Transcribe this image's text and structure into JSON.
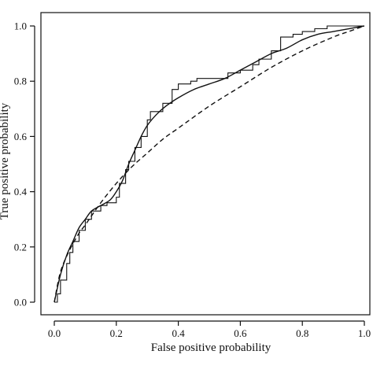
{
  "chart_data": {
    "type": "line",
    "title": "",
    "xlabel": "False positive probability",
    "ylabel": "True positive probability",
    "xlim": [
      0,
      1
    ],
    "ylim": [
      0,
      1
    ],
    "x_ticks": [
      "0.0",
      "0.2",
      "0.4",
      "0.6",
      "0.8",
      "1.0"
    ],
    "y_ticks": [
      "0.0",
      "0.2",
      "0.4",
      "0.6",
      "0.8",
      "1.0"
    ],
    "grid": false,
    "legend": "none",
    "series": [
      {
        "style": "step",
        "line": "solid",
        "x": [
          0.0,
          0.01,
          0.01,
          0.02,
          0.02,
          0.04,
          0.04,
          0.05,
          0.05,
          0.06,
          0.06,
          0.08,
          0.08,
          0.1,
          0.1,
          0.12,
          0.12,
          0.15,
          0.15,
          0.17,
          0.17,
          0.2,
          0.2,
          0.21,
          0.21,
          0.23,
          0.23,
          0.24,
          0.24,
          0.26,
          0.26,
          0.28,
          0.28,
          0.3,
          0.3,
          0.31,
          0.31,
          0.35,
          0.35,
          0.38,
          0.38,
          0.4,
          0.4,
          0.44,
          0.44,
          0.46,
          0.46,
          0.56,
          0.56,
          0.6,
          0.6,
          0.64,
          0.64,
          0.66,
          0.66,
          0.7,
          0.7,
          0.73,
          0.73,
          0.77,
          0.77,
          0.8,
          0.8,
          0.84,
          0.84,
          0.88,
          0.88,
          0.95,
          0.95,
          1.0
        ],
        "y": [
          0.0,
          0.0,
          0.03,
          0.03,
          0.08,
          0.08,
          0.14,
          0.14,
          0.18,
          0.18,
          0.22,
          0.22,
          0.26,
          0.26,
          0.3,
          0.3,
          0.33,
          0.33,
          0.35,
          0.35,
          0.36,
          0.36,
          0.38,
          0.38,
          0.43,
          0.43,
          0.48,
          0.48,
          0.51,
          0.51,
          0.56,
          0.56,
          0.6,
          0.6,
          0.66,
          0.66,
          0.69,
          0.69,
          0.72,
          0.72,
          0.77,
          0.77,
          0.79,
          0.79,
          0.8,
          0.8,
          0.81,
          0.81,
          0.83,
          0.83,
          0.84,
          0.84,
          0.86,
          0.86,
          0.88,
          0.88,
          0.91,
          0.91,
          0.96,
          0.96,
          0.97,
          0.97,
          0.98,
          0.98,
          0.99,
          0.99,
          1.0,
          1.0,
          1.0,
          1.0
        ]
      },
      {
        "style": "curve",
        "line": "solid",
        "x": [
          0.0,
          0.02,
          0.04,
          0.06,
          0.08,
          0.1,
          0.12,
          0.15,
          0.18,
          0.2,
          0.22,
          0.24,
          0.26,
          0.28,
          0.3,
          0.33,
          0.36,
          0.4,
          0.45,
          0.5,
          0.55,
          0.6,
          0.65,
          0.7,
          0.75,
          0.8,
          0.85,
          0.9,
          0.95,
          1.0
        ],
        "y": [
          0.0,
          0.1,
          0.17,
          0.22,
          0.27,
          0.3,
          0.33,
          0.35,
          0.37,
          0.4,
          0.44,
          0.5,
          0.55,
          0.6,
          0.64,
          0.68,
          0.71,
          0.74,
          0.77,
          0.79,
          0.81,
          0.84,
          0.87,
          0.9,
          0.92,
          0.95,
          0.97,
          0.98,
          0.99,
          1.0
        ]
      },
      {
        "style": "curve",
        "line": "dashed",
        "x": [
          0.0,
          0.02,
          0.05,
          0.08,
          0.1,
          0.15,
          0.2,
          0.25,
          0.3,
          0.35,
          0.4,
          0.5,
          0.6,
          0.7,
          0.8,
          0.9,
          0.95,
          1.0
        ],
        "y": [
          0.0,
          0.11,
          0.19,
          0.25,
          0.28,
          0.36,
          0.43,
          0.49,
          0.54,
          0.59,
          0.63,
          0.71,
          0.78,
          0.85,
          0.91,
          0.96,
          0.98,
          1.0
        ]
      }
    ]
  }
}
